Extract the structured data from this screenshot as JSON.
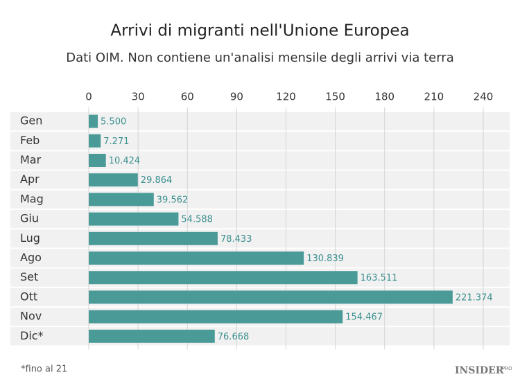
{
  "chart_data": {
    "type": "barh",
    "title": "Arrivi di migranti nell'Unione Europea",
    "subtitle": "Dati OIM. Non contiene un'analisi mensile degli arrivi via terra",
    "categories": [
      "Gen",
      "Feb",
      "Mar",
      "Apr",
      "Mag",
      "Giu",
      "Lug",
      "Ago",
      "Set",
      "Ott",
      "Nov",
      "Dic*"
    ],
    "values": [
      5.5,
      7.271,
      10.424,
      29.864,
      39.562,
      54.588,
      78.433,
      130.839,
      163.511,
      221.374,
      154.467,
      76.668
    ],
    "value_labels": [
      "5.500",
      "7.271",
      "10.424",
      "29.864",
      "39.562",
      "54.588",
      "78.433",
      "130.839",
      "163.511",
      "221.374",
      "154.467",
      "76.668"
    ],
    "color": "#4a9a98",
    "xlim": [
      0,
      240
    ],
    "xticks": [
      0,
      30,
      60,
      90,
      120,
      150,
      180,
      210,
      240
    ],
    "grid": true,
    "footnote": "*fino al 21",
    "brand": "INSIDER",
    "brand_suffix": "PRO"
  }
}
